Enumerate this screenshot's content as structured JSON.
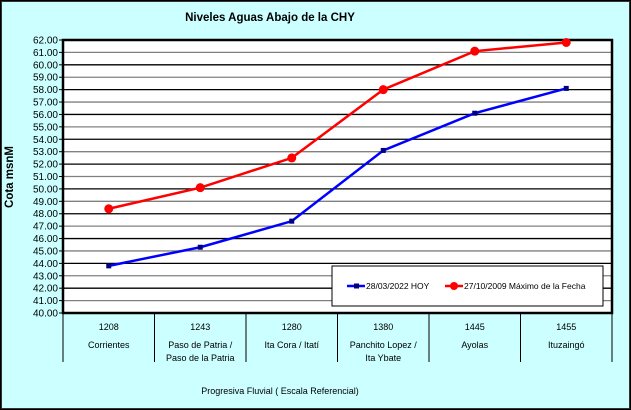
{
  "chart_data": {
    "type": "line",
    "title": "Niveles Aguas Abajo de la CHY",
    "ylabel": "Cota msnM",
    "xlabel": "Progresiva Fluvial ( Escala Referencial)",
    "ylim": [
      40,
      62
    ],
    "ytick_step": 1,
    "yticks": [
      "40.00",
      "41.00",
      "42.00",
      "43.00",
      "44.00",
      "45.00",
      "46.00",
      "47.00",
      "48.00",
      "49.00",
      "50.00",
      "51.00",
      "52.00",
      "53.00",
      "54.00",
      "55.00",
      "56.00",
      "57.00",
      "58.00",
      "59.00",
      "60.00",
      "61.00",
      "62.00"
    ],
    "grid": true,
    "legend_position": "bottom-right",
    "categories": [
      {
        "km": "1208",
        "name": [
          "Corrientes"
        ]
      },
      {
        "km": "1243",
        "name": [
          "Paso de Patria /",
          "Paso de la Patria"
        ]
      },
      {
        "km": "1280",
        "name": [
          "Ita Cora / Itatí"
        ]
      },
      {
        "km": "1380",
        "name": [
          "Panchito Lopez /",
          "Ita Ybate"
        ]
      },
      {
        "km": "1445",
        "name": [
          "Ayolas"
        ]
      },
      {
        "km": "1455",
        "name": [
          "Ituzaingó"
        ]
      }
    ],
    "series": [
      {
        "name": "28/03/2022 HOY",
        "color": "#0000ff",
        "marker": "square",
        "values": [
          43.8,
          45.3,
          47.4,
          53.1,
          56.1,
          58.1
        ]
      },
      {
        "name": "27/10/2009 Máximo de la Fecha",
        "color": "#ff0000",
        "marker": "circle",
        "values": [
          48.4,
          50.1,
          52.5,
          58.0,
          61.1,
          61.8
        ]
      }
    ]
  }
}
